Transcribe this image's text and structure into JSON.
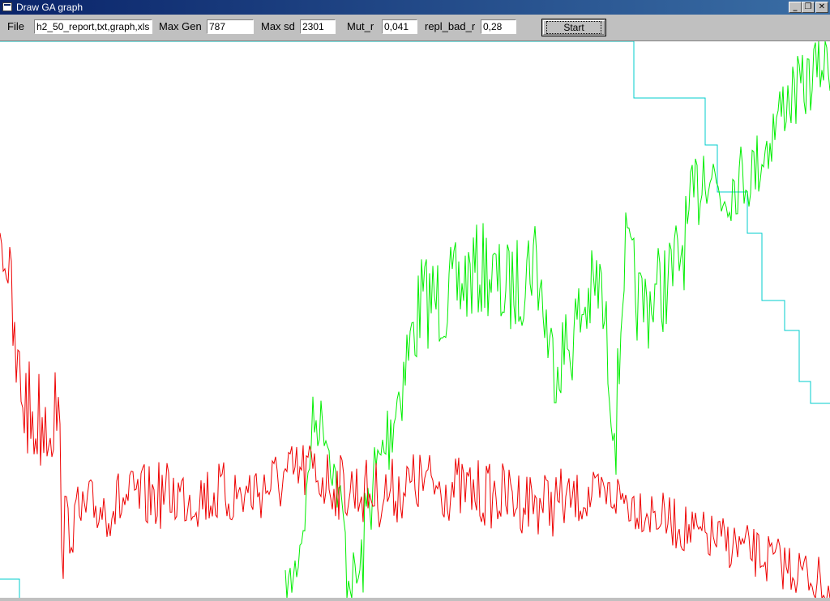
{
  "window": {
    "title": "Draw GA graph",
    "buttons": [
      "_",
      "❐",
      "✕"
    ]
  },
  "form": {
    "file_label": "File",
    "file_value": "h2_50_report,txt,graph,xls",
    "maxgen_label": "Max Gen",
    "maxgen_value": "787",
    "maxsd_label": "Max sd",
    "maxsd_value": "2301",
    "mut_label": "Mut_r",
    "mut_value": "0,041",
    "repl_label": "repl_bad_r",
    "repl_value": "0,28",
    "start_label": "Start"
  },
  "chart_data": {
    "type": "line",
    "x_range": [
      0,
      787
    ],
    "series": [
      {
        "color": "#00cccc"
      },
      {
        "color": "#00ee00"
      },
      {
        "color": "#ee0000"
      }
    ]
  }
}
